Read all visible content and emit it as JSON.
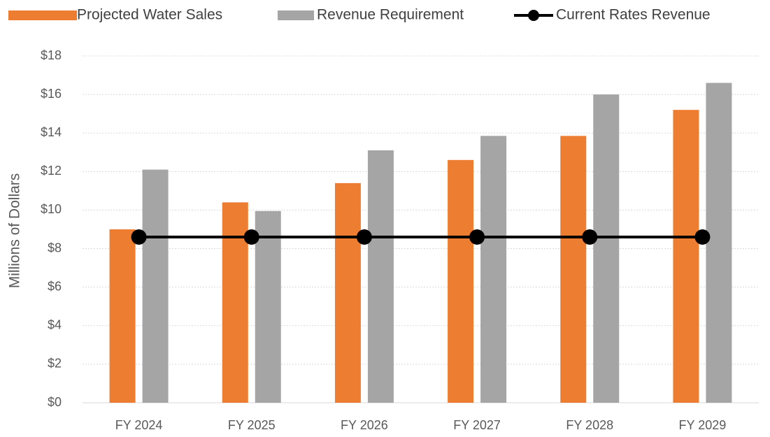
{
  "chart_data": {
    "type": "bar",
    "y_label": "Millions of Dollars",
    "categories": [
      "FY 2024",
      "FY 2025",
      "FY 2026",
      "FY 2027",
      "FY 2028",
      "FY 2029"
    ],
    "series": [
      {
        "name": "Projected Water Sales",
        "type": "bar",
        "color": "#ed7d31",
        "values": [
          9.0,
          10.4,
          11.4,
          12.6,
          13.85,
          15.2
        ]
      },
      {
        "name": "Revenue Requirement",
        "type": "bar",
        "color": "#a5a5a5",
        "values": [
          12.1,
          9.95,
          13.1,
          13.85,
          16.0,
          16.6
        ]
      },
      {
        "name": "Current Rates Revenue",
        "type": "line",
        "color": "#000000",
        "values": [
          8.6,
          8.6,
          8.6,
          8.6,
          8.6,
          8.6
        ]
      }
    ],
    "ylim": [
      0,
      18
    ],
    "yticks": [
      {
        "value": 0,
        "label": "$0"
      },
      {
        "value": 2,
        "label": "$2"
      },
      {
        "value": 4,
        "label": "$4"
      },
      {
        "value": 6,
        "label": "$6"
      },
      {
        "value": 8,
        "label": "$8"
      },
      {
        "value": 10,
        "label": "$10"
      },
      {
        "value": 12,
        "label": "$12"
      },
      {
        "value": 14,
        "label": "$14"
      },
      {
        "value": 16,
        "label": "$16"
      },
      {
        "value": 18,
        "label": "$18"
      }
    ],
    "grid": true,
    "legend": "top"
  }
}
